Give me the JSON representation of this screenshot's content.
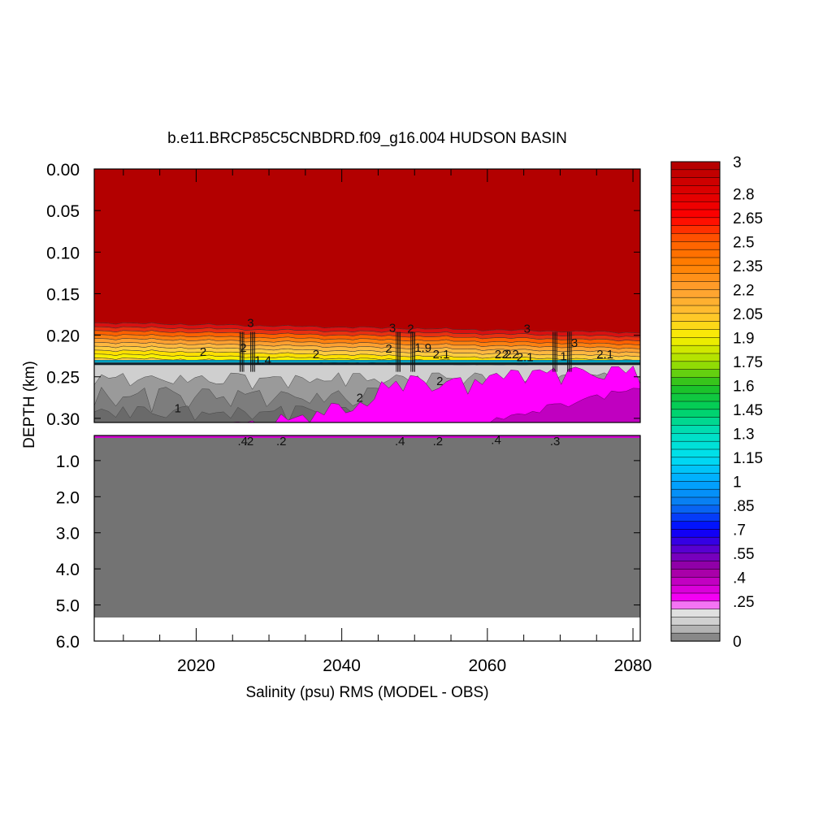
{
  "chart_data": {
    "type": "heatmap",
    "title": "b.e11.BRCP85C5CNBDRD.f09_g16.004 HUDSON BASIN",
    "xlabel": "Salinity (psu) RMS (MODEL - OBS)",
    "ylabel": "DEPTH (km)",
    "x_range": [
      2006,
      2081
    ],
    "x_ticks": [
      "2020",
      "2040",
      "2060",
      "2080"
    ],
    "upper_panel": {
      "ylim": [
        0.0,
        0.305
      ],
      "y_ticks": [
        "0.00",
        "0.05",
        "0.10",
        "0.15",
        "0.20",
        "0.25",
        "0.30"
      ]
    },
    "lower_panel": {
      "ylim": [
        0.305,
        6.0
      ],
      "y_ticks": [
        "1.0",
        "2.0",
        "3.0",
        "4.0",
        "5.0",
        "6.0"
      ]
    },
    "colorbar": {
      "labels": [
        "3",
        "2.8",
        "2.65",
        "2.5",
        "2.35",
        "2.2",
        "2.05",
        "1.9",
        "1.75",
        "1.6",
        "1.45",
        "1.3",
        "1.15",
        "1",
        ".85",
        ".7",
        ".55",
        ".4",
        ".25",
        "0"
      ],
      "levels": [
        0,
        0.05,
        0.1,
        0.15,
        0.2,
        0.25,
        0.3,
        0.35,
        0.4,
        0.45,
        0.5,
        0.55,
        0.6,
        0.65,
        0.7,
        0.75,
        0.8,
        0.85,
        0.9,
        0.95,
        1.0,
        1.05,
        1.1,
        1.15,
        1.2,
        1.25,
        1.3,
        1.35,
        1.4,
        1.45,
        1.5,
        1.55,
        1.6,
        1.65,
        1.7,
        1.75,
        1.8,
        1.85,
        1.9,
        1.95,
        2.0,
        2.05,
        2.1,
        2.15,
        2.2,
        2.25,
        2.3,
        2.35,
        2.4,
        2.45,
        2.5,
        2.55,
        2.6,
        2.65,
        2.7,
        2.75,
        2.8,
        2.85,
        2.9,
        2.95,
        3.0
      ]
    },
    "contour_labels": [
      "3",
      "2",
      "2.1",
      "2.2",
      "1.4",
      "1",
      "2",
      "3",
      "3",
      "2",
      "2",
      "1",
      "2",
      "2",
      "2.1",
      "2.2",
      "3",
      "2",
      "1.9",
      "2.1",
      ".4",
      ".2",
      ".4",
      ".2",
      ".4",
      ".3",
      ".2"
    ],
    "colors": {
      "top": "#b30000",
      "deep": "#737373",
      "magenta": "#ff00ff",
      "light_gray": "#cfcfcf",
      "mid_gray": "#9a9a9a"
    }
  }
}
